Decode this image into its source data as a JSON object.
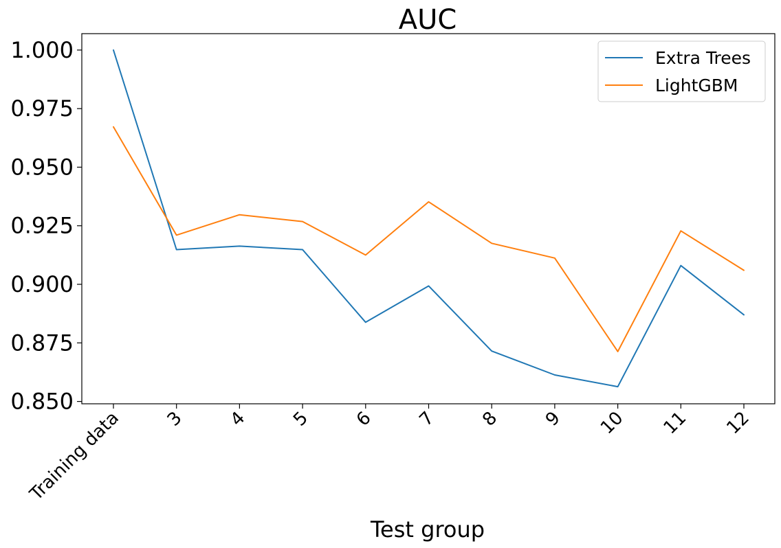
{
  "chart_data": {
    "type": "line",
    "title": "AUC",
    "xlabel": "Test group",
    "ylabel": "",
    "categories": [
      "Training data",
      "3",
      "4",
      "5",
      "6",
      "7",
      "8",
      "9",
      "10",
      "11",
      "12"
    ],
    "ylim": [
      0.849,
      1.007
    ],
    "yticks": [
      "0.850",
      "0.875",
      "0.900",
      "0.925",
      "0.950",
      "0.975",
      "1.000"
    ],
    "grid": false,
    "legend_position": "top-right",
    "series": [
      {
        "name": "Extra Trees",
        "color": "#1f77b4",
        "values": [
          1.0,
          0.9148,
          0.9163,
          0.9148,
          0.8838,
          0.8993,
          0.8715,
          0.8613,
          0.8563,
          0.908,
          0.887
        ]
      },
      {
        "name": "LightGBM",
        "color": "#ff7f0e",
        "values": [
          0.9672,
          0.921,
          0.9297,
          0.9268,
          0.9125,
          0.9352,
          0.9175,
          0.9112,
          0.8713,
          0.9228,
          0.906
        ]
      }
    ]
  }
}
